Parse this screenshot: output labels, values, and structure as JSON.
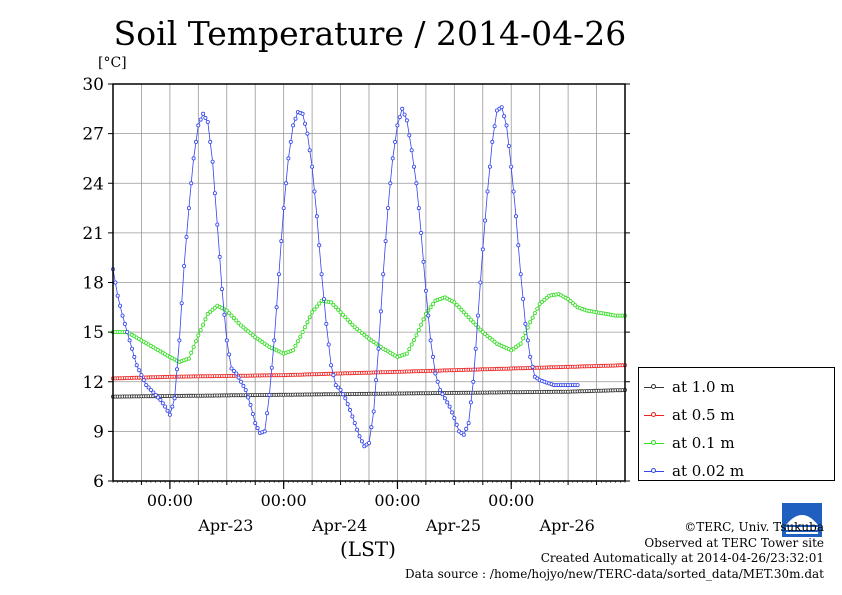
{
  "title": "Soil Temperature / 2014-04-26",
  "unit_label": "[°C]",
  "xaxis_label": "(LST)",
  "colors": {
    "at_1_0m": "#333333",
    "at_0_5m": "#ee2222",
    "at_0_1m": "#33dd22",
    "at_0_02m": "#3344ee",
    "grid": "#999999"
  },
  "footer": {
    "copyright": "©TERC, Univ. Tsukuba",
    "observed": "Observed at TERC Tower site",
    "created": "Created Automatically at 2014-04-26/23:32:01",
    "source": "Data source : /home/hojyo/new/TERC-data/sorted_data/MET.30m.dat"
  },
  "chart_data": {
    "type": "line",
    "title": "Soil Temperature / 2014-04-26",
    "ylabel": "[°C]",
    "xlabel": "(LST)",
    "ylim": [
      6,
      30
    ],
    "yticks": [
      6,
      9,
      12,
      15,
      18,
      21,
      24,
      27,
      30
    ],
    "xlim_hours_from_apr23_0000": [
      -12,
      96
    ],
    "xtick_hour_labels": [
      "00:00",
      "00:00",
      "00:00",
      "00:00"
    ],
    "xtick_date_labels": [
      "Apr-23",
      "Apr-24",
      "Apr-25",
      "Apr-26"
    ],
    "grid": true,
    "legend_position": "right",
    "series": [
      {
        "name": "at 1.0 m",
        "color": "#333333",
        "x": [
          -12,
          84,
          96
        ],
        "y": [
          11.1,
          11.4,
          11.5
        ]
      },
      {
        "name": "at 0.5 m",
        "color": "#ee2222",
        "x": [
          -12,
          0,
          24,
          48,
          72,
          96
        ],
        "y": [
          12.2,
          12.3,
          12.4,
          12.6,
          12.8,
          13.0
        ]
      },
      {
        "name": "at 0.1 m",
        "color": "#33dd22",
        "x": [
          -12,
          -9,
          -6,
          -3,
          0,
          2,
          4,
          6,
          8,
          10,
          12,
          15,
          18,
          21,
          24,
          26,
          28,
          30,
          32,
          34,
          36,
          39,
          42,
          45,
          48,
          50,
          52,
          54,
          56,
          58,
          60,
          63,
          66,
          69,
          72,
          74,
          76,
          78,
          80,
          82,
          84,
          86,
          88,
          90,
          92,
          94,
          96
        ],
        "y": [
          15.0,
          15.0,
          14.5,
          14.0,
          13.5,
          13.2,
          13.4,
          14.8,
          16.1,
          16.6,
          16.3,
          15.4,
          14.7,
          14.1,
          13.7,
          13.9,
          15.0,
          16.2,
          16.9,
          16.8,
          16.2,
          15.3,
          14.6,
          14.0,
          13.5,
          13.7,
          14.8,
          16.1,
          16.9,
          17.1,
          16.8,
          15.9,
          15.0,
          14.3,
          13.9,
          14.3,
          15.6,
          16.7,
          17.2,
          17.3,
          17.0,
          16.5,
          16.3,
          16.2,
          16.1,
          16.0,
          16.0
        ],
        "y_note": ""
      },
      {
        "name": "at 0.02 m",
        "color": "#3344ee",
        "x": [
          -12,
          -11,
          -10,
          -9,
          -8,
          -7,
          -6,
          -5,
          -4,
          -3,
          -2,
          -1,
          0,
          1,
          2,
          3,
          4,
          5,
          6,
          7,
          8,
          9,
          10,
          11,
          12,
          13,
          14,
          15,
          16,
          17,
          18,
          19,
          20,
          21,
          22,
          23,
          24,
          25,
          26,
          27,
          28,
          29,
          30,
          31,
          32,
          33,
          34,
          35,
          36,
          37,
          38,
          39,
          40,
          41,
          42,
          43,
          44,
          45,
          46,
          47,
          48,
          49,
          50,
          51,
          52,
          53,
          54,
          55,
          56,
          57,
          58,
          59,
          60,
          61,
          62,
          63,
          64,
          65,
          66,
          67,
          68,
          69,
          70,
          71,
          72,
          73,
          74,
          75,
          76,
          77,
          78,
          79,
          80,
          81,
          82,
          83,
          84,
          85,
          86
        ],
        "y": [
          18.8,
          17.2,
          16.0,
          15.0,
          14.0,
          13.0,
          12.4,
          11.8,
          11.5,
          11.2,
          10.9,
          10.5,
          10.0,
          11.0,
          14.5,
          19.0,
          22.5,
          25.5,
          27.5,
          28.2,
          27.7,
          25.3,
          21.5,
          17.6,
          14.5,
          12.8,
          12.5,
          12.0,
          11.5,
          10.6,
          9.5,
          8.9,
          9.0,
          11.2,
          14.5,
          18.5,
          22.5,
          25.5,
          27.5,
          28.3,
          28.2,
          27.0,
          25.0,
          22.0,
          18.5,
          15.5,
          13.0,
          11.8,
          11.5,
          11.0,
          10.3,
          9.5,
          8.7,
          8.1,
          8.3,
          10.2,
          14.0,
          18.5,
          22.5,
          25.5,
          27.5,
          28.5,
          27.8,
          26.0,
          24.0,
          21.0,
          17.5,
          14.5,
          12.5,
          11.5,
          11.0,
          10.5,
          9.8,
          9.0,
          8.8,
          9.5,
          12.0,
          16.0,
          20.0,
          23.5,
          26.5,
          28.4,
          28.6,
          27.5,
          25.0,
          22.0,
          18.5,
          15.5,
          13.5,
          12.3,
          12.1,
          12.0,
          11.9,
          11.8,
          11.8,
          11.8,
          11.8,
          11.8,
          11.8
        ]
      }
    ]
  }
}
